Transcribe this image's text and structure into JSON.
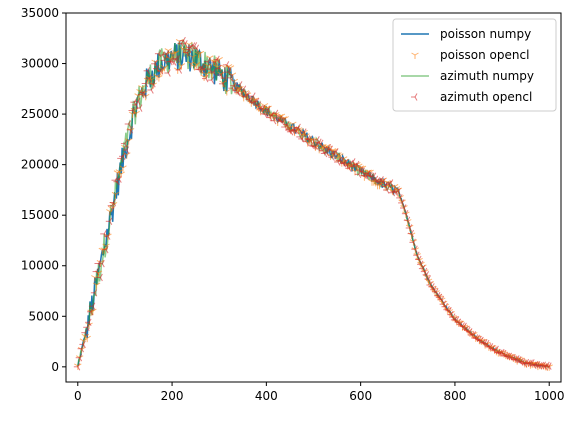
{
  "chart_data": {
    "type": "line",
    "title": "",
    "xlabel": "",
    "ylabel": "",
    "xlim": [
      -25,
      1025
    ],
    "ylim": [
      -1500,
      35000
    ],
    "xticks": [
      0,
      200,
      400,
      600,
      800,
      1000
    ],
    "yticks": [
      0,
      5000,
      10000,
      15000,
      20000,
      25000,
      30000,
      35000
    ],
    "legend_position": "top-right",
    "grid": false,
    "series": [
      {
        "name": "poisson numpy",
        "kind": "line",
        "color": "#1f77b4"
      },
      {
        "name": "poisson opencl",
        "kind": "markers",
        "marker": "tri_down",
        "color": "#ff7f0e"
      },
      {
        "name": "azimuth numpy",
        "kind": "line",
        "color": "#2ca02c"
      },
      {
        "name": "azimuth opencl",
        "kind": "markers",
        "marker": "tri_left",
        "color": "#d62728"
      }
    ],
    "envelope": {
      "x": [
        0,
        25,
        50,
        75,
        100,
        125,
        150,
        175,
        200,
        225,
        250,
        275,
        300,
        350,
        400,
        450,
        500,
        550,
        600,
        650,
        680,
        700,
        720,
        750,
        800,
        850,
        900,
        950,
        1000
      ],
      "y": [
        0,
        5000,
        10500,
        16000,
        21500,
        26000,
        28500,
        30000,
        30700,
        30800,
        30500,
        29800,
        29000,
        27200,
        25300,
        23800,
        22300,
        20800,
        19300,
        18000,
        17400,
        14500,
        11000,
        8000,
        4700,
        2700,
        1300,
        400,
        0
      ]
    }
  }
}
